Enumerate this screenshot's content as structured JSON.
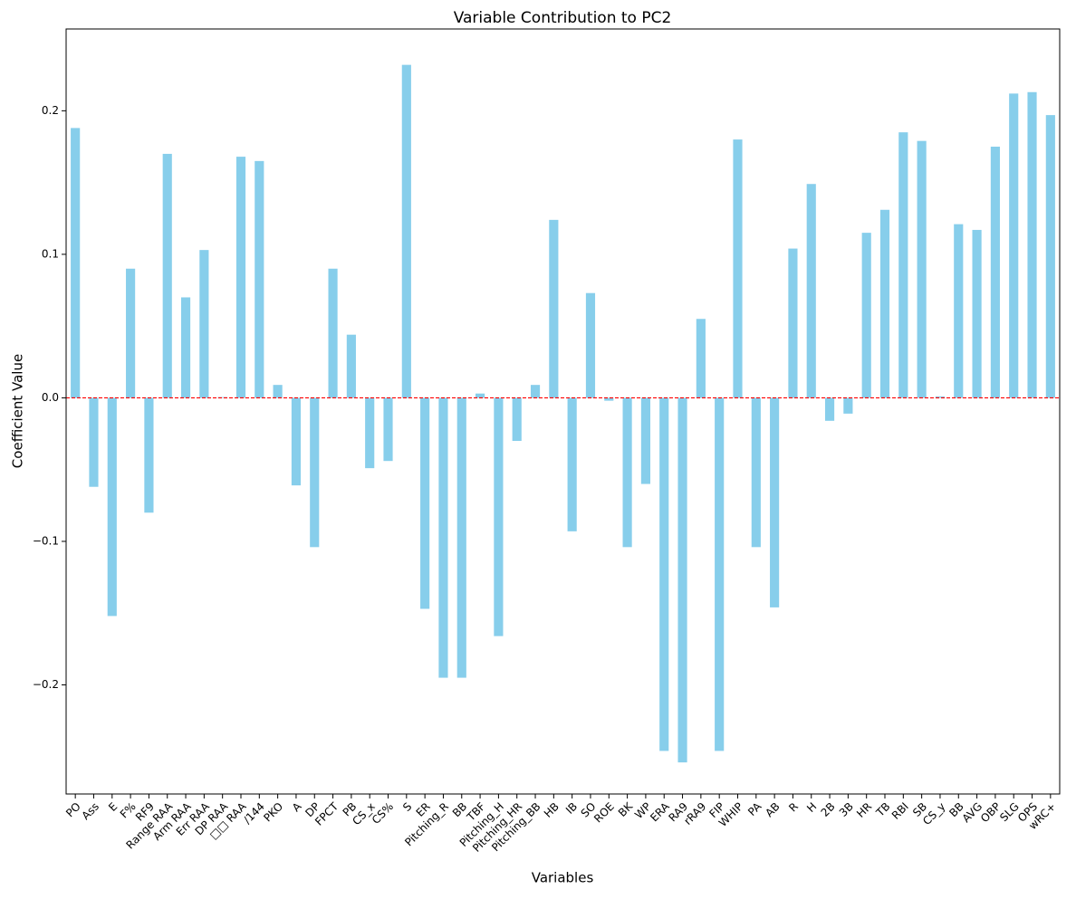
{
  "chart_data": {
    "type": "bar",
    "title": "Variable Contribution to PC2",
    "x_label": "Variables",
    "y_label": "Coefficient Value",
    "categories": [
      "PO",
      "Ass",
      "E",
      "F%",
      "RF9",
      "Range RAA",
      "Arm RAA",
      "Err RAA",
      "DP RAA",
      "□□ RAA",
      "/144",
      "PKO",
      "A",
      "DP",
      "FPCT",
      "PB",
      "CS_x",
      "CS%",
      "S",
      "ER",
      "Pitching_R",
      "BB",
      "TBF",
      "Pitching_H",
      "Pitching_HR",
      "Pitching_BB",
      "HB",
      "IB",
      "SO",
      "ROE",
      "BK",
      "WP",
      "ERA",
      "RA9",
      "rRA9",
      "FIP",
      "WHIP",
      "PA",
      "AB",
      "R",
      "H",
      "2B",
      "3B",
      "HR",
      "TB",
      "RBI",
      "SB",
      "CS_y",
      "BB",
      "AVG",
      "OBP",
      "SLG",
      "OPS",
      "wRC+"
    ],
    "values": [
      0.188,
      -0.062,
      -0.152,
      0.09,
      -0.08,
      0.17,
      0.07,
      0.103,
      0.0005,
      0.168,
      0.165,
      0.009,
      -0.061,
      -0.104,
      0.09,
      0.044,
      -0.049,
      -0.044,
      0.232,
      -0.147,
      -0.195,
      -0.195,
      0.003,
      -0.166,
      -0.03,
      0.009,
      0.124,
      -0.093,
      0.073,
      -0.002,
      -0.104,
      -0.06,
      -0.246,
      -0.254,
      0.055,
      -0.246,
      0.18,
      -0.104,
      -0.146,
      0.104,
      0.149,
      -0.016,
      -0.011,
      0.115,
      0.131,
      0.185,
      0.179,
      0.001,
      0.121,
      0.117,
      0.175,
      0.212,
      0.213,
      0.197
    ],
    "color": "#87ceeb",
    "ylim": [
      -0.276,
      0.257
    ],
    "yticks": [
      {
        "value": -0.2,
        "label": "−0.2"
      },
      {
        "value": -0.1,
        "label": "−0.1"
      },
      {
        "value": 0,
        "label": "0.0"
      },
      0.1,
      0.2
    ],
    "reference_line": {
      "value": 0,
      "color": "#ff0000"
    }
  }
}
